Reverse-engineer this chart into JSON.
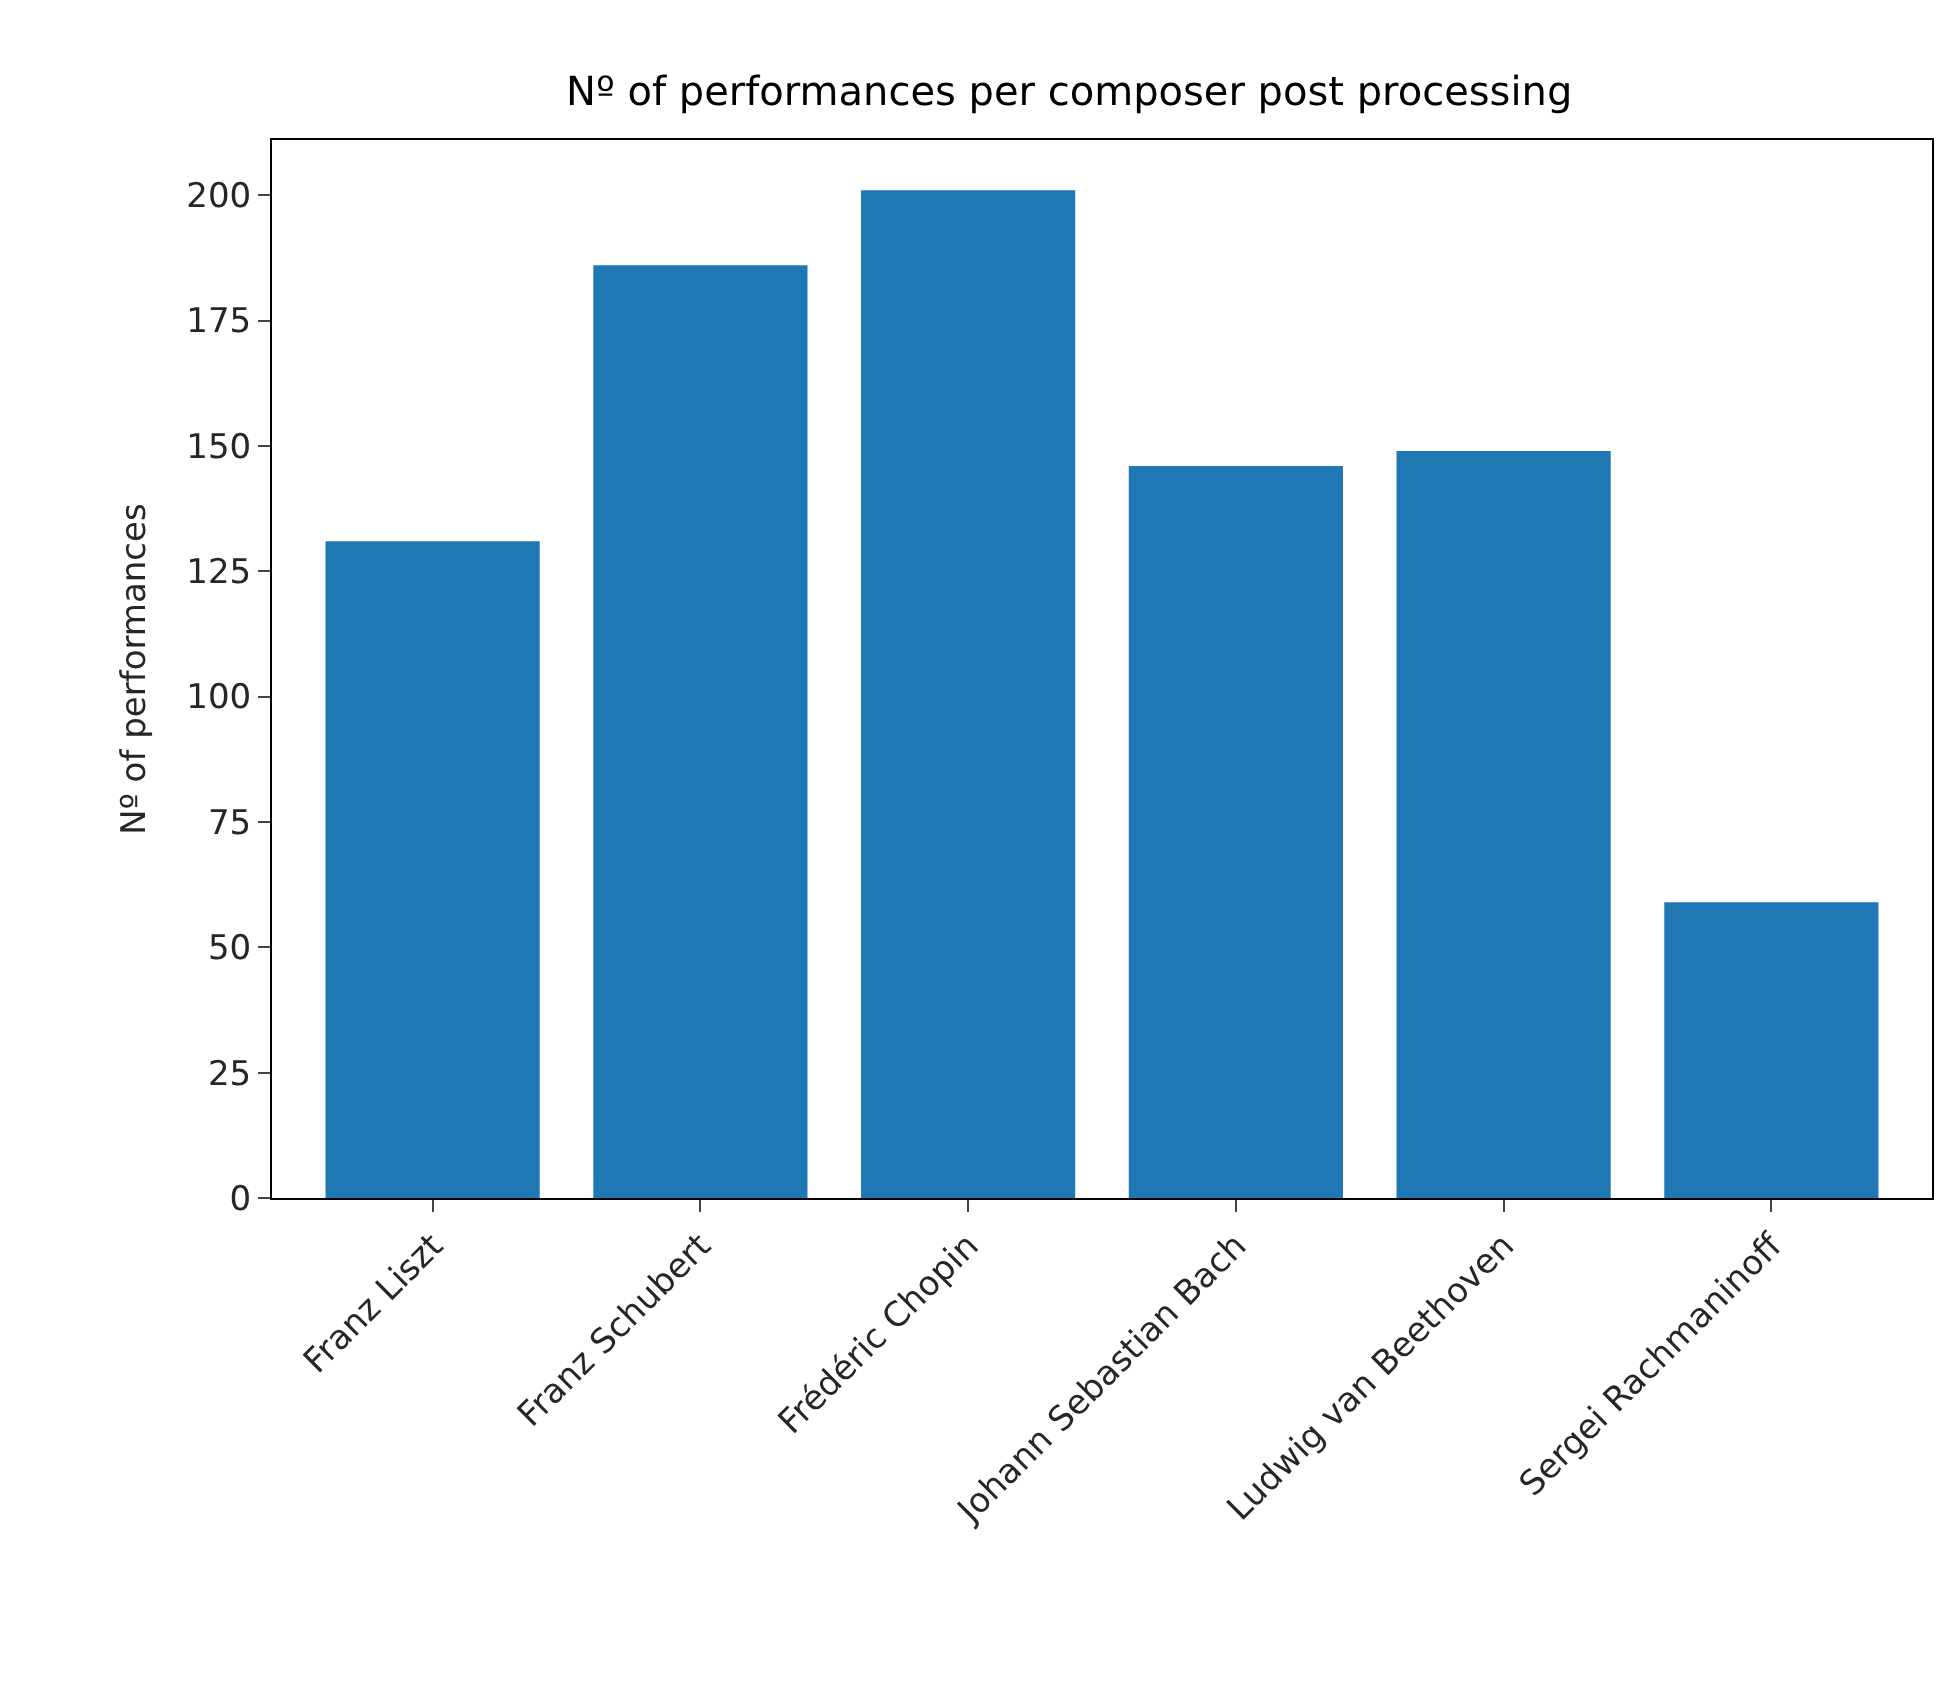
{
  "chart_data": {
    "type": "bar",
    "title": "Nº of performances per composer post processing",
    "ylabel": "Nº of performances",
    "categories": [
      "Franz Liszt",
      "Franz Schubert",
      "Frédéric Chopin",
      "Johann Sebastian Bach",
      "Ludwig van Beethoven",
      "Sergei Rachmaninoff"
    ],
    "values": [
      131,
      186,
      201,
      146,
      149,
      59
    ],
    "color": "#1f77b4",
    "ylim": [
      0,
      211
    ],
    "yticks": [
      0,
      25,
      50,
      75,
      100,
      125,
      150,
      175,
      200
    ]
  }
}
